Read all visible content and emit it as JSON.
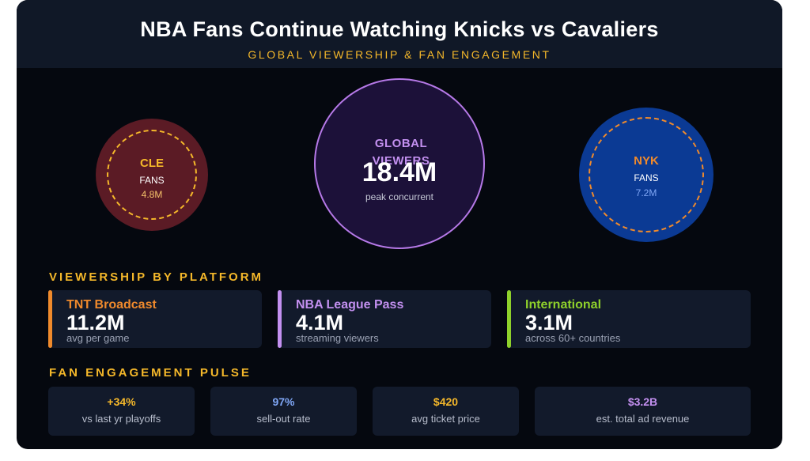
{
  "header": {
    "title": "NBA Fans Continue Watching Knicks vs Cavaliers",
    "subtitle": "GLOBAL VIEWERSHIP & FAN ENGAGEMENT"
  },
  "circles": {
    "cle": {
      "team": "CLE",
      "label": "FANS",
      "value": "4.8M"
    },
    "global": {
      "label": "GLOBAL VIEWERS",
      "value": "18.4M",
      "sub": "peak concurrent"
    },
    "nyk": {
      "team": "NYK",
      "label": "FANS",
      "value": "7.2M"
    }
  },
  "platforms": {
    "heading": "VIEWERSHIP BY PLATFORM",
    "items": [
      {
        "name": "TNT Broadcast",
        "value": "11.2M",
        "sub": "avg per game",
        "color": "#f08a2c"
      },
      {
        "name": "NBA League Pass",
        "value": "4.1M",
        "sub": "streaming viewers",
        "color": "#c390f0"
      },
      {
        "name": "International",
        "value": "3.1M",
        "sub": "across 60+ countries",
        "color": "#8fd12b"
      }
    ]
  },
  "pulse": {
    "heading": "FAN ENGAGEMENT PULSE",
    "items": [
      {
        "value": "+34%",
        "sub": "vs last yr playoffs",
        "color": "#f5b82a"
      },
      {
        "value": "97%",
        "sub": "sell-out rate",
        "color": "#7fa6f5"
      },
      {
        "value": "$420",
        "sub": "avg ticket price",
        "color": "#f5b82a"
      },
      {
        "value": "$3.2B",
        "sub": "est. total ad revenue",
        "color": "#c390f0"
      }
    ]
  },
  "colors": {
    "background": "#05080f",
    "header": "#101827",
    "accent_gold": "#f5b82a",
    "cle_fill": "#5b1b25",
    "nyk_fill": "#0b3a94",
    "global_fill": "#1c1139",
    "global_border": "#b679e8",
    "card": "#121a2b"
  }
}
